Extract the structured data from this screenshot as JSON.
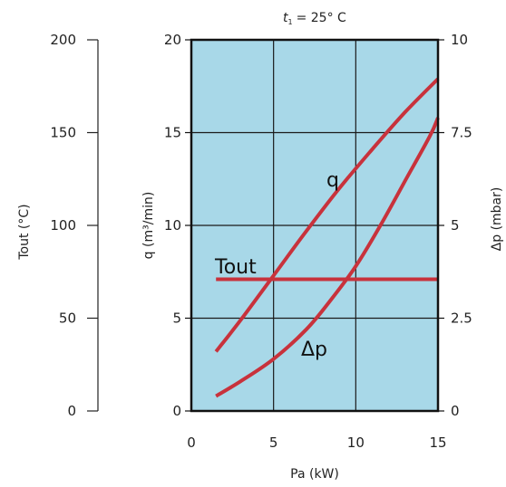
{
  "chart_data": {
    "type": "line",
    "condition": {
      "symbol": "t",
      "subscript": "1",
      "text": "= 25° C"
    },
    "xlabel": "Pa (kW)",
    "ylabel_q": "q (m³/min)",
    "ylabel_dp": "Δp (mbar)",
    "ylabel_tout": "Tout (°C)",
    "xlim": [
      0,
      15
    ],
    "ylim_q": [
      0,
      20
    ],
    "ylim_dp": [
      0,
      10
    ],
    "ylim_tout": [
      0,
      200
    ],
    "x_ticks": [
      "0",
      "5",
      "10",
      "15"
    ],
    "q_ticks": [
      "0",
      "5",
      "10",
      "15",
      "20"
    ],
    "dp_ticks": [
      "0",
      "2.5",
      "5",
      "7.5",
      "10"
    ],
    "tout_ticks": [
      "0",
      "50",
      "100",
      "150",
      "200"
    ],
    "grid": true,
    "plot_background": "#a8d8e8",
    "line_color": "#c8323c",
    "series": [
      {
        "name": "q",
        "axis": "q",
        "x": [
          1.5,
          3,
          5,
          7,
          9,
          11,
          13,
          15
        ],
        "values": [
          3.2,
          4.9,
          7.3,
          9.7,
          12.0,
          14.1,
          16.1,
          17.9
        ]
      },
      {
        "name": "Δp",
        "axis": "dp",
        "x": [
          1.5,
          3,
          5,
          7,
          8.5,
          10,
          11.5,
          13,
          14.5,
          15
        ],
        "values": [
          0.4,
          0.8,
          1.4,
          2.2,
          3.0,
          3.9,
          5.0,
          6.2,
          7.4,
          7.9
        ]
      },
      {
        "name": "Tout",
        "axis": "tout",
        "x": [
          1.5,
          15
        ],
        "values": [
          71,
          71
        ]
      }
    ]
  }
}
